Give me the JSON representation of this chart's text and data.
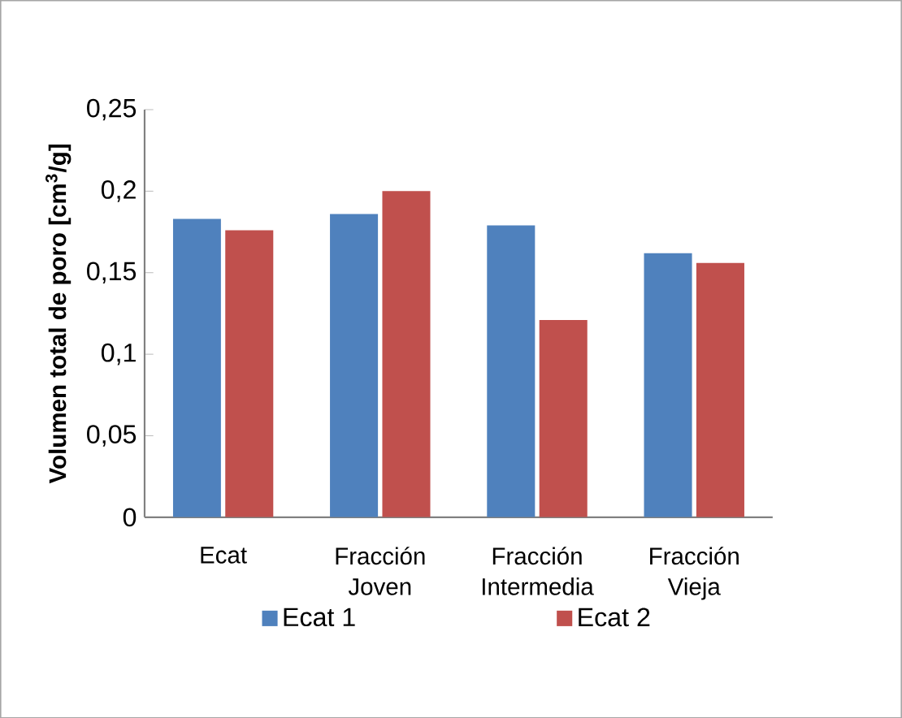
{
  "chart_data": {
    "type": "bar",
    "ylabel": "Volumen total de poro [cm$^{3}$/g]",
    "categories": [
      "Ecat",
      "Fracción Joven",
      "Fracción Intermedia",
      "Fracción Vieja"
    ],
    "series": [
      {
        "name": "Ecat 1",
        "color": "#4f81bd",
        "values": [
          0.183,
          0.186,
          0.179,
          0.162
        ]
      },
      {
        "name": "Ecat 2",
        "color": "#c0504d",
        "values": [
          0.176,
          0.2,
          0.121,
          0.156
        ]
      }
    ],
    "ylim": [
      0,
      0.25
    ],
    "yticks": [
      {
        "value": 0,
        "label": "0"
      },
      {
        "value": 0.05,
        "label": "0,05"
      },
      {
        "value": 0.1,
        "label": "0,1"
      },
      {
        "value": 0.15,
        "label": "0,15"
      },
      {
        "value": 0.2,
        "label": "0,2"
      },
      {
        "value": 0.25,
        "label": "0,25"
      }
    ],
    "grid": false,
    "legend": "bottom"
  }
}
